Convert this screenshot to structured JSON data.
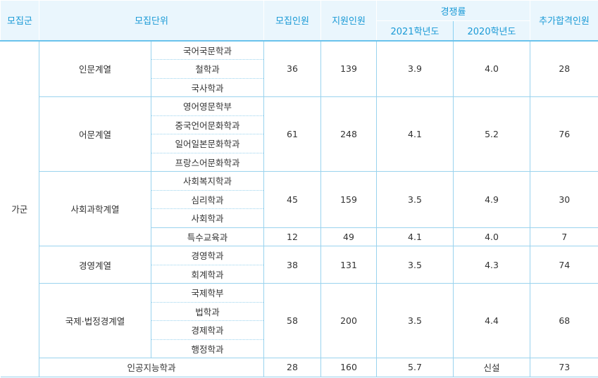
{
  "headers": {
    "group": "모집군",
    "unit": "모집단위",
    "quota": "모집인원",
    "applicants": "지원인원",
    "rate": "경쟁률",
    "rate_2021": "2021학년도",
    "rate_2020": "2020학년도",
    "extra": "추가합격인원"
  },
  "group_name": "가군",
  "rows": {
    "humanities": {
      "field": "인문계열",
      "depts": [
        "국어국문학과",
        "철학과",
        "국사학과"
      ],
      "quota": "36",
      "applicants": "139",
      "rate_2021": "3.9",
      "rate_2020": "4.0",
      "extra": "28"
    },
    "languages": {
      "field": "어문계열",
      "depts": [
        "영어영문학부",
        "중국언어문화학과",
        "일어일본문화학과",
        "프랑스어문화학과"
      ],
      "quota": "61",
      "applicants": "248",
      "rate_2021": "4.1",
      "rate_2020": "5.2",
      "extra": "76"
    },
    "social": {
      "field": "사회과학계열",
      "depts": [
        "사회복지학과",
        "심리학과",
        "사회학과"
      ],
      "quota": "45",
      "applicants": "159",
      "rate_2021": "3.5",
      "rate_2020": "4.9",
      "extra": "30"
    },
    "special_ed": {
      "dept": "특수교육과",
      "quota": "12",
      "applicants": "49",
      "rate_2021": "4.1",
      "rate_2020": "4.0",
      "extra": "7"
    },
    "business": {
      "field": "경영계열",
      "depts": [
        "경영학과",
        "회계학과"
      ],
      "quota": "38",
      "applicants": "131",
      "rate_2021": "3.5",
      "rate_2020": "4.3",
      "extra": "74"
    },
    "intl_law": {
      "field": "국제·법정경계열",
      "depts": [
        "국제학부",
        "법학과",
        "경제학과",
        "행정학과"
      ],
      "quota": "58",
      "applicants": "200",
      "rate_2021": "3.5",
      "rate_2020": "4.4",
      "extra": "68"
    },
    "ai": {
      "dept": "인공지능학과",
      "quota": "28",
      "applicants": "160",
      "rate_2021": "5.7",
      "rate_2020": "신설",
      "extra": "73"
    }
  }
}
